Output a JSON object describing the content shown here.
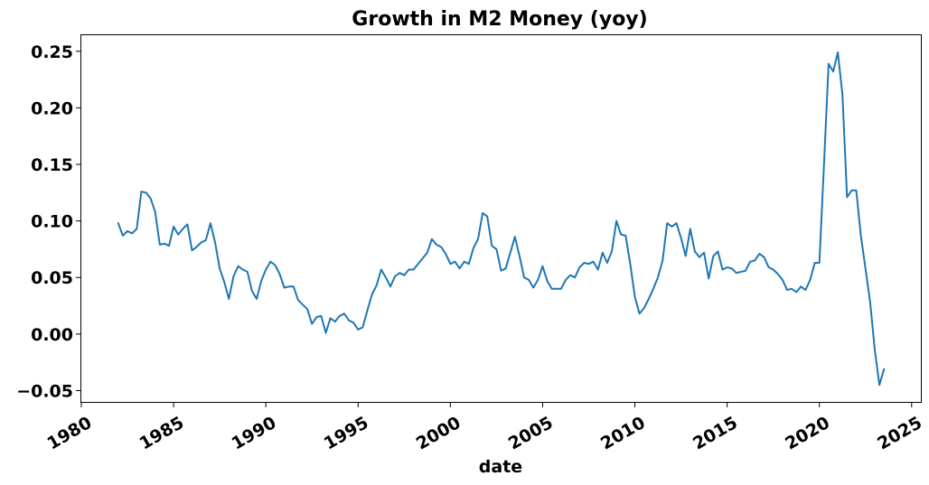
{
  "chart_data": {
    "type": "line",
    "title": "Growth in M2 Money (yoy)",
    "xlabel": "date",
    "ylabel": "",
    "xlim": [
      1980,
      2025.5
    ],
    "ylim": [
      -0.06,
      0.265
    ],
    "x_ticks": [
      "1980",
      "1985",
      "1990",
      "1995",
      "2000",
      "2005",
      "2010",
      "2015",
      "2020",
      "2025"
    ],
    "y_ticks": [
      "0.25",
      "0.20",
      "0.15",
      "0.10",
      "0.05",
      "0.00",
      "−0.05"
    ],
    "grid": false,
    "color": "#1f77b4",
    "series": [
      {
        "x": [
          1982.0,
          1982.25,
          1982.5,
          1982.75,
          1983.0,
          1983.25,
          1983.5,
          1983.75,
          1984.0,
          1984.25,
          1984.5,
          1984.75,
          1985.0,
          1985.25,
          1985.5,
          1985.75,
          1986.0,
          1986.25,
          1986.5,
          1986.75,
          1987.0,
          1987.25,
          1987.5,
          1987.75,
          1988.0,
          1988.25,
          1988.5,
          1988.75,
          1989.0,
          1989.25,
          1989.5,
          1989.75,
          1990.0,
          1990.25,
          1990.5,
          1990.75,
          1991.0,
          1991.25,
          1991.5,
          1991.75,
          1992.0,
          1992.25,
          1992.5,
          1992.75,
          1993.0,
          1993.25,
          1993.5,
          1993.75,
          1994.0,
          1994.25,
          1994.5,
          1994.75,
          1995.0,
          1995.25,
          1995.5,
          1995.75,
          1996.0,
          1996.25,
          1996.5,
          1996.75,
          1997.0,
          1997.25,
          1997.5,
          1997.75,
          1998.0,
          1998.25,
          1998.5,
          1998.75,
          1999.0,
          1999.25,
          1999.5,
          1999.75,
          2000.0,
          2000.25,
          2000.5,
          2000.75,
          2001.0,
          2001.25,
          2001.5,
          2001.75,
          2002.0,
          2002.25,
          2002.5,
          2002.75,
          2003.0,
          2003.25,
          2003.5,
          2003.75,
          2004.0,
          2004.25,
          2004.5,
          2004.75,
          2005.0,
          2005.25,
          2005.5,
          2005.75,
          2006.0,
          2006.25,
          2006.5,
          2006.75,
          2007.0,
          2007.25,
          2007.5,
          2007.75,
          2008.0,
          2008.25,
          2008.5,
          2008.75,
          2009.0,
          2009.25,
          2009.5,
          2009.75,
          2010.0,
          2010.25,
          2010.5,
          2010.75,
          2011.0,
          2011.25,
          2011.5,
          2011.75,
          2012.0,
          2012.25,
          2012.5,
          2012.75,
          2013.0,
          2013.25,
          2013.5,
          2013.75,
          2014.0,
          2014.25,
          2014.5,
          2014.75,
          2015.0,
          2015.25,
          2015.5,
          2015.75,
          2016.0,
          2016.25,
          2016.5,
          2016.75,
          2017.0,
          2017.25,
          2017.5,
          2017.75,
          2018.0,
          2018.25,
          2018.5,
          2018.75,
          2019.0,
          2019.25,
          2019.5,
          2019.75,
          2020.0,
          2020.25,
          2020.5,
          2020.75,
          2021.0,
          2021.25,
          2021.5,
          2021.75,
          2022.0,
          2022.25,
          2022.5,
          2022.75,
          2023.0,
          2023.25,
          2023.5
        ],
        "y": [
          0.098,
          0.087,
          0.091,
          0.089,
          0.093,
          0.126,
          0.125,
          0.12,
          0.108,
          0.079,
          0.08,
          0.078,
          0.095,
          0.088,
          0.093,
          0.097,
          0.074,
          0.077,
          0.081,
          0.083,
          0.098,
          0.081,
          0.058,
          0.046,
          0.031,
          0.051,
          0.06,
          0.057,
          0.055,
          0.038,
          0.031,
          0.047,
          0.057,
          0.064,
          0.061,
          0.053,
          0.041,
          0.042,
          0.042,
          0.03,
          0.026,
          0.022,
          0.009,
          0.015,
          0.016,
          0.001,
          0.014,
          0.011,
          0.016,
          0.018,
          0.012,
          0.01,
          0.004,
          0.006,
          0.021,
          0.035,
          0.043,
          0.057,
          0.05,
          0.042,
          0.051,
          0.054,
          0.052,
          0.057,
          0.057,
          0.062,
          0.067,
          0.072,
          0.084,
          0.079,
          0.077,
          0.071,
          0.062,
          0.064,
          0.058,
          0.064,
          0.062,
          0.076,
          0.084,
          0.107,
          0.104,
          0.078,
          0.075,
          0.056,
          0.058,
          0.072,
          0.086,
          0.069,
          0.05,
          0.048,
          0.041,
          0.048,
          0.06,
          0.047,
          0.04,
          0.04,
          0.04,
          0.048,
          0.052,
          0.05,
          0.059,
          0.063,
          0.062,
          0.064,
          0.057,
          0.072,
          0.063,
          0.073,
          0.1,
          0.088,
          0.087,
          0.062,
          0.033,
          0.018,
          0.023,
          0.031,
          0.04,
          0.05,
          0.065,
          0.098,
          0.095,
          0.098,
          0.085,
          0.069,
          0.093,
          0.073,
          0.068,
          0.072,
          0.049,
          0.069,
          0.073,
          0.057,
          0.059,
          0.058,
          0.054,
          0.055,
          0.056,
          0.064,
          0.065,
          0.071,
          0.068,
          0.059,
          0.057,
          0.053,
          0.048,
          0.039,
          0.04,
          0.037,
          0.042,
          0.039,
          0.048,
          0.063,
          0.063,
          0.15,
          0.239,
          0.232,
          0.249,
          0.212,
          0.121,
          0.127,
          0.127,
          0.087,
          0.058,
          0.028,
          -0.014,
          -0.045,
          -0.031
        ]
      }
    ]
  }
}
